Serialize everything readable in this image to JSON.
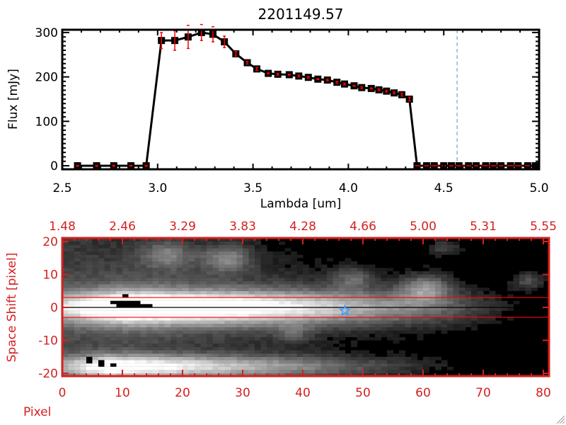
{
  "chart_data": [
    {
      "type": "line",
      "title": "2201149.57",
      "xlabel": "Lambda [um]",
      "ylabel": "Flux [mJy]",
      "xlim": [
        2.5,
        5.0
      ],
      "ylim": [
        -8,
        306
      ],
      "xticks": [
        "2.5",
        "3.0",
        "3.5",
        "4.0",
        "4.5",
        "5.0"
      ],
      "yticks": [
        "0",
        "100",
        "200",
        "300"
      ],
      "series": [
        {
          "name": "flux",
          "x": [
            2.58,
            2.68,
            2.77,
            2.86,
            2.94,
            3.02,
            3.09,
            3.16,
            3.23,
            3.29,
            3.35,
            3.41,
            3.47,
            3.52,
            3.58,
            3.63,
            3.69,
            3.74,
            3.79,
            3.84,
            3.89,
            3.94,
            3.98,
            4.03,
            4.07,
            4.12,
            4.16,
            4.2,
            4.24,
            4.28,
            4.32,
            4.36,
            4.41,
            4.45,
            4.5,
            4.54,
            4.58,
            4.63,
            4.67,
            4.72,
            4.76,
            4.8,
            4.85,
            4.89,
            4.94,
            4.98
          ],
          "y": [
            0,
            0,
            0,
            0,
            0,
            282,
            282,
            290,
            300,
            296,
            279,
            252,
            232,
            218,
            208,
            206,
            205,
            202,
            199,
            195,
            193,
            188,
            184,
            180,
            176,
            174,
            171,
            168,
            164,
            160,
            150,
            0,
            0,
            0,
            0,
            0,
            0,
            0,
            0,
            0,
            0,
            0,
            0,
            0,
            0,
            0
          ],
          "err": [
            1,
            1,
            1,
            1,
            1,
            18,
            22,
            26,
            18,
            17,
            13,
            5,
            3,
            3,
            1,
            2,
            1,
            2,
            2,
            1,
            2,
            2,
            2,
            1,
            2,
            1,
            2,
            2,
            2,
            3,
            4,
            0,
            0,
            0,
            0,
            0,
            0,
            0,
            0,
            0,
            0,
            0,
            0,
            0,
            0,
            0
          ]
        }
      ],
      "vline": 4.57,
      "colors": {
        "line": "#000000",
        "error": "#ff0000",
        "vline": "#4a90d9",
        "zero_line": "#ff0000"
      }
    },
    {
      "type": "heatmap",
      "xlabel": "Pixel",
      "ylabel": "Space Shift [pixel]",
      "xlim": [
        0,
        81
      ],
      "ylim": [
        -21,
        21
      ],
      "xticks": [
        "0",
        "10",
        "20",
        "30",
        "40",
        "50",
        "60",
        "70",
        "80"
      ],
      "yticks": [
        "20",
        "10",
        "0",
        "-10",
        "-20"
      ],
      "top_xticks": [
        "1.48",
        "2.46",
        "3.29",
        "3.83",
        "4.28",
        "4.66",
        "5.00",
        "5.31",
        "5.55"
      ],
      "hlines": [
        {
          "y": 0,
          "color": "#000000"
        },
        {
          "y": 3,
          "color": "#ff0000"
        },
        {
          "y": -3,
          "color": "#ff0000"
        }
      ],
      "marker": {
        "type": "star",
        "x": 47,
        "y": -1,
        "color": "#3399ff"
      },
      "colors": {
        "axis": "#d42020"
      }
    }
  ]
}
